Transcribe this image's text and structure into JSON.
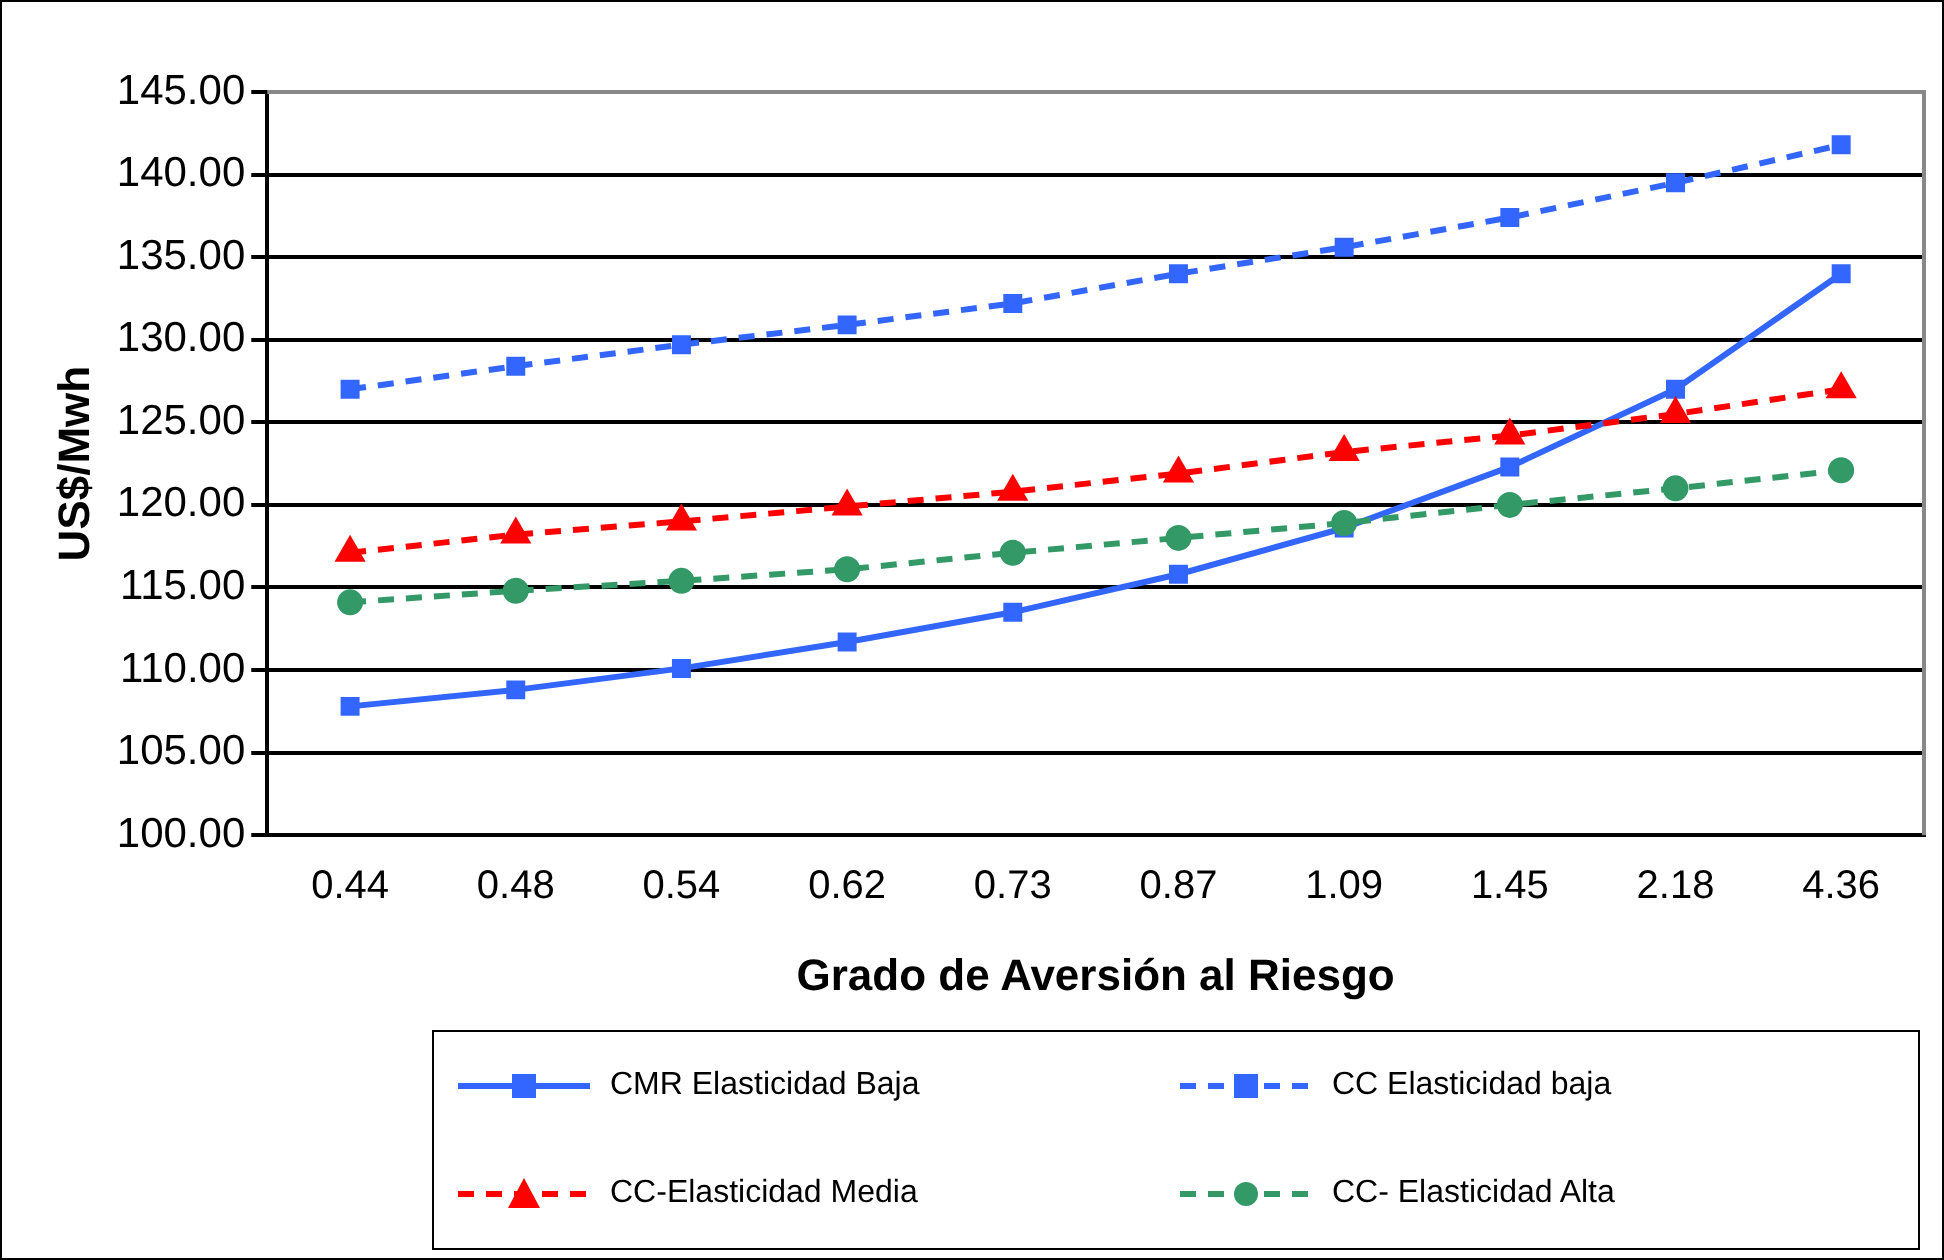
{
  "chart_data": {
    "type": "line",
    "xlabel": "Grado de Aversión al Riesgo",
    "ylabel": "US$/Mwh",
    "categories": [
      "0.44",
      "0.48",
      "0.54",
      "0.62",
      "0.73",
      "0.87",
      "1.09",
      "1.45",
      "2.18",
      "4.36"
    ],
    "ylim": [
      100,
      145
    ],
    "yticks": [
      {
        "value": 100,
        "label": "100.00"
      },
      {
        "value": 105,
        "label": "105.00"
      },
      {
        "value": 110,
        "label": "110.00"
      },
      {
        "value": 115,
        "label": "115.00"
      },
      {
        "value": 120,
        "label": "120.00"
      },
      {
        "value": 125,
        "label": "125.00"
      },
      {
        "value": 130,
        "label": "130.00"
      },
      {
        "value": 135,
        "label": "135.00"
      },
      {
        "value": 140,
        "label": "140.00"
      },
      {
        "value": 145,
        "label": "145.00"
      }
    ],
    "grid": "y",
    "legend": "bottom",
    "series": [
      {
        "name": "CMR Elasticidad Baja",
        "color": "#3366ff",
        "marker": "square",
        "line_style": "solid",
        "values": [
          107.8,
          108.8,
          110.1,
          111.7,
          113.5,
          115.8,
          118.6,
          122.3,
          127.0,
          134.0
        ]
      },
      {
        "name": "CC Elasticidad baja",
        "color": "#3366ff",
        "marker": "square",
        "line_style": "dashed",
        "values": [
          127.0,
          128.4,
          129.7,
          130.9,
          132.2,
          134.0,
          135.6,
          137.4,
          139.5,
          141.8
        ]
      },
      {
        "name": "CC-Elasticidad Media",
        "color": "#ff0000",
        "marker": "triangle",
        "line_style": "dashed",
        "values": [
          117.1,
          118.2,
          119.0,
          119.9,
          120.8,
          121.9,
          123.2,
          124.2,
          125.5,
          127.0
        ]
      },
      {
        "name": "CC- Elasticidad Alta",
        "color": "#339966",
        "marker": "circle",
        "line_style": "dashed",
        "values": [
          114.1,
          114.8,
          115.4,
          116.1,
          117.1,
          118.0,
          118.9,
          120.0,
          121.0,
          122.1
        ]
      }
    ]
  }
}
